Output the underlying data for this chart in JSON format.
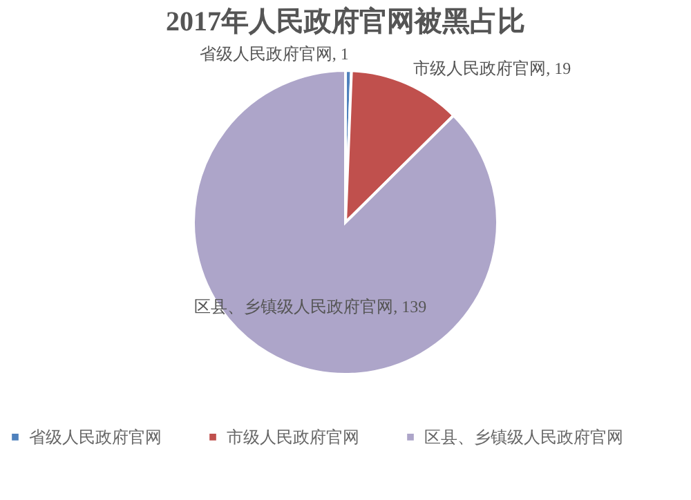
{
  "chart_data": {
    "type": "pie",
    "title": "2017年人民政府官网被黑占比",
    "categories": [
      "省级人民政府官网",
      "市级人民政府官网",
      "区县、乡镇级人民政府官网"
    ],
    "values": [
      1,
      19,
      139
    ],
    "value_labels": [
      "省级人民政府官网, 1",
      "市级人民政府官网, 19",
      "区县、乡镇级人民政府官网, 139"
    ],
    "colors": [
      "#4f81bd",
      "#c0504d",
      "#ada5c9"
    ],
    "legend": "bottom"
  }
}
